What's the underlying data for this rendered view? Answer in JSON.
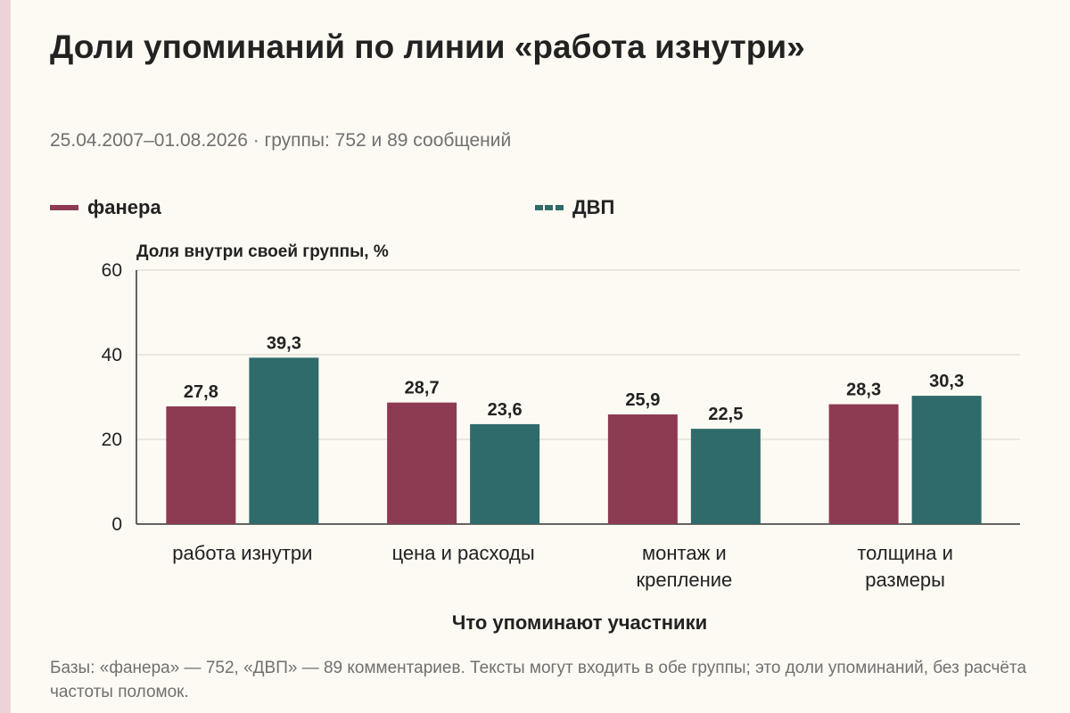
{
  "title": "Доли упоминаний по линии «работа изнутри»",
  "subtitle": "25.04.2007–01.08.2026 · группы: 752 и 89 сообщений",
  "legend": [
    {
      "label": "фанера",
      "color": "#8c3b52",
      "style": "solid"
    },
    {
      "label": "ДВП",
      "color": "#2f6b6a",
      "style": "dashed"
    }
  ],
  "chart_data": {
    "type": "bar",
    "ylabel": "Доля внутри своей группы, %",
    "xlabel": "Что упоминают участники",
    "ylim": [
      0,
      60
    ],
    "yticks": [
      "0",
      "20",
      "40",
      "60"
    ],
    "grid": true,
    "categories": [
      [
        "работа изнутри"
      ],
      [
        "цена и расходы"
      ],
      [
        "монтаж и",
        "крепление"
      ],
      [
        "толщина и",
        "размеры"
      ]
    ],
    "series": [
      {
        "name": "фанера",
        "color": "#8c3b52",
        "values": [
          27.8,
          28.7,
          25.9,
          28.3
        ],
        "labels": [
          "27,8",
          "28,7",
          "25,9",
          "28,3"
        ]
      },
      {
        "name": "ДВП",
        "color": "#2f6b6a",
        "values": [
          39.3,
          23.6,
          22.5,
          30.3
        ],
        "labels": [
          "39,3",
          "23,6",
          "22,5",
          "30,3"
        ]
      }
    ]
  },
  "footnote": "Базы: «фанера» — 752, «ДВП» — 89 комментариев. Тексты могут входить в обе группы; это доли упоминаний, без расчёта частоты поломок."
}
